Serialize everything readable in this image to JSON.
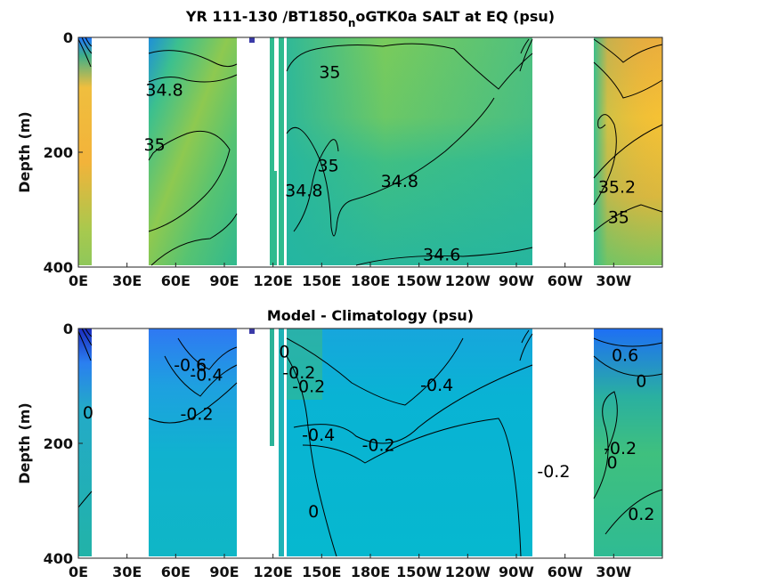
{
  "chart_data": [
    {
      "type": "heatmap",
      "title": "YR 111-130 /BT1850",
      "title_sub": "n",
      "title_rest": "oGTK0a SALT at EQ (psu)",
      "ylabel": "Depth (m)",
      "xlabel": "",
      "x_ticks": [
        "0E",
        "30E",
        "60E",
        "90E",
        "120E",
        "150E",
        "180E",
        "150W",
        "120W",
        "90W",
        "60W",
        "30W"
      ],
      "y_ticks": [
        "0",
        "200",
        "400"
      ],
      "ylim": [
        400,
        0
      ],
      "contour_labels": [
        {
          "text": "34.8",
          "lon": 53,
          "depth": 93
        },
        {
          "text": "35",
          "lon": 47,
          "depth": 188
        },
        {
          "text": "35",
          "lon": 155,
          "depth": 62
        },
        {
          "text": "34.8",
          "lon": 139,
          "depth": 268
        },
        {
          "text": "35",
          "lon": 154,
          "depth": 225
        },
        {
          "text": "34.8",
          "lon": 198,
          "depth": 252
        },
        {
          "text": "34.6",
          "lon": 224,
          "depth": 380
        },
        {
          "text": "35.2",
          "lon": 332,
          "depth": 262
        },
        {
          "text": "35",
          "lon": 333,
          "depth": 315
        }
      ]
    },
    {
      "type": "heatmap",
      "title": "Model - Climatology (psu)",
      "ylabel": "Depth (m)",
      "xlabel": "",
      "x_ticks": [
        "0E",
        "30E",
        "60E",
        "90E",
        "120E",
        "150E",
        "180E",
        "150W",
        "120W",
        "90W",
        "60W",
        "30W"
      ],
      "y_ticks": [
        "0",
        "200",
        "400"
      ],
      "ylim": [
        400,
        0
      ],
      "contour_labels": [
        {
          "text": "-0.6",
          "lon": 69,
          "depth": 65
        },
        {
          "text": "-0.4",
          "lon": 79,
          "depth": 82
        },
        {
          "text": "-0.2",
          "lon": 73,
          "depth": 150
        },
        {
          "text": "0",
          "lon": 6,
          "depth": 148
        },
        {
          "text": "0",
          "lon": 127,
          "depth": 42
        },
        {
          "text": "-0.2",
          "lon": 136,
          "depth": 78
        },
        {
          "text": "-0.2",
          "lon": 142,
          "depth": 102
        },
        {
          "text": "-0.4",
          "lon": 148,
          "depth": 187
        },
        {
          "text": "-0.2",
          "lon": 185,
          "depth": 205
        },
        {
          "text": "-0.4",
          "lon": 221,
          "depth": 100
        },
        {
          "text": "0",
          "lon": 145,
          "depth": 320
        },
        {
          "text": "-0.2",
          "lon": 293,
          "depth": 250
        },
        {
          "text": "0.6",
          "lon": 337,
          "depth": 48
        },
        {
          "text": "0",
          "lon": 347,
          "depth": 93
        },
        {
          "text": "0",
          "lon": 329,
          "depth": 235
        },
        {
          "text": "-0.2",
          "lon": 334,
          "depth": 210
        },
        {
          "text": "0.2",
          "lon": 347,
          "depth": 325
        }
      ]
    }
  ]
}
